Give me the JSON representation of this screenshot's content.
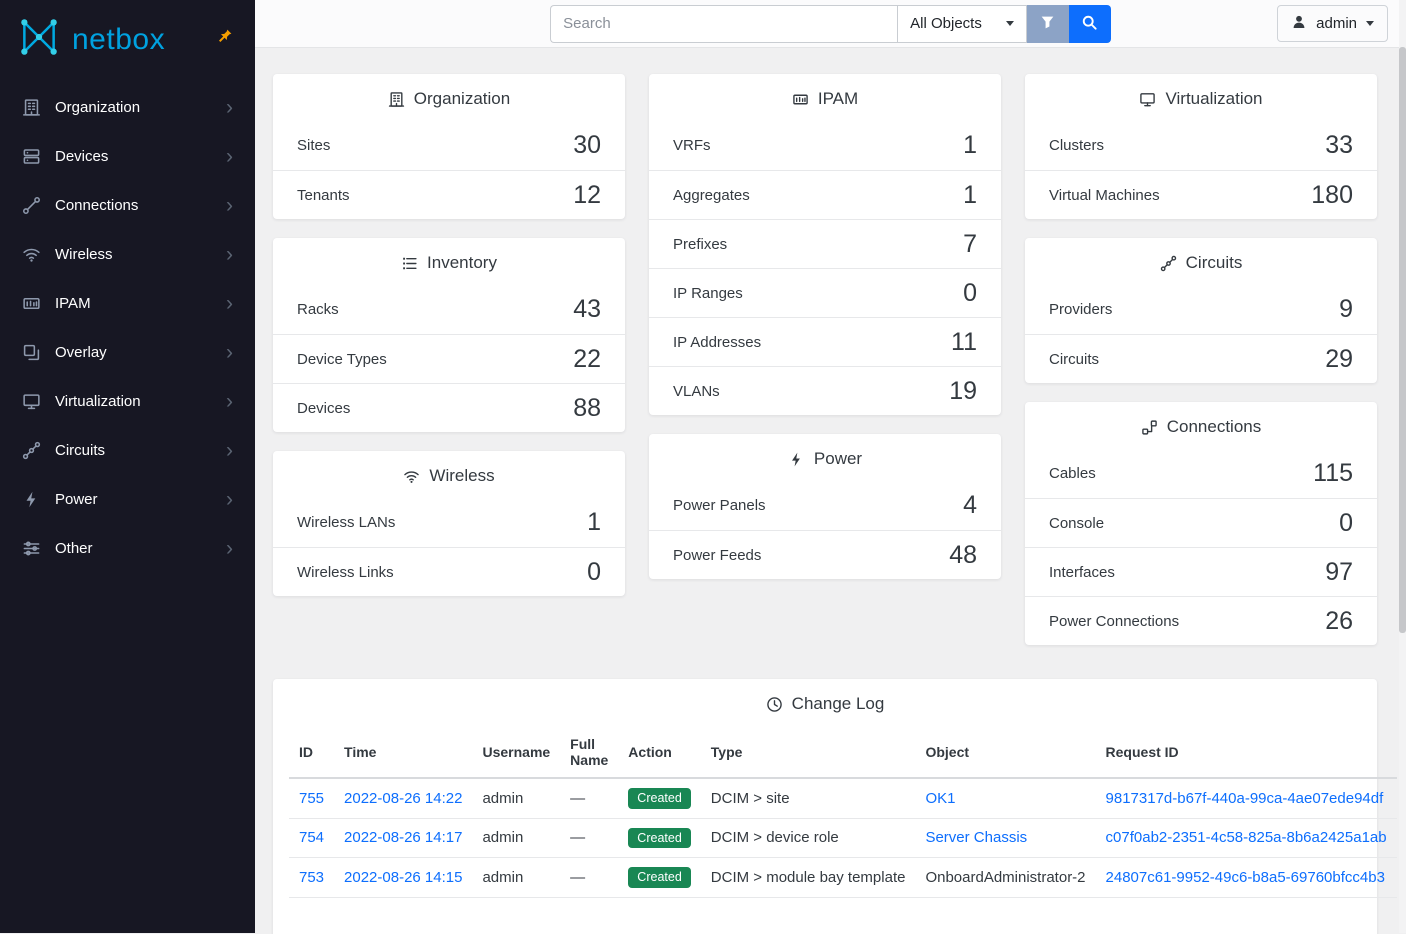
{
  "colors": {
    "brand_blue": "#00a2e0",
    "accent_blue": "#0d6efd",
    "success_green": "#198754",
    "pin_amber": "#f59f00",
    "sidebar_bg": "#171723"
  },
  "sidebar": {
    "logo_text": "netbox",
    "items": [
      {
        "label": "Organization",
        "icon": "building-icon"
      },
      {
        "label": "Devices",
        "icon": "devices-icon"
      },
      {
        "label": "Connections",
        "icon": "connections-icon"
      },
      {
        "label": "Wireless",
        "icon": "wifi-icon"
      },
      {
        "label": "IPAM",
        "icon": "ipam-icon"
      },
      {
        "label": "Overlay",
        "icon": "overlay-icon"
      },
      {
        "label": "Virtualization",
        "icon": "virtualization-icon"
      },
      {
        "label": "Circuits",
        "icon": "circuits-icon"
      },
      {
        "label": "Power",
        "icon": "power-icon"
      },
      {
        "label": "Other",
        "icon": "other-icon"
      }
    ]
  },
  "topbar": {
    "search_placeholder": "Search",
    "object_scope": "All Objects",
    "user_label": "admin"
  },
  "columns": [
    [
      {
        "title": "Organization",
        "icon": "building-icon",
        "rows": [
          {
            "label": "Sites",
            "value": "30"
          },
          {
            "label": "Tenants",
            "value": "12"
          }
        ]
      },
      {
        "title": "Inventory",
        "icon": "inventory-icon",
        "rows": [
          {
            "label": "Racks",
            "value": "43"
          },
          {
            "label": "Device Types",
            "value": "22"
          },
          {
            "label": "Devices",
            "value": "88"
          }
        ]
      },
      {
        "title": "Wireless",
        "icon": "wifi-icon",
        "rows": [
          {
            "label": "Wireless LANs",
            "value": "1"
          },
          {
            "label": "Wireless Links",
            "value": "0"
          }
        ]
      }
    ],
    [
      {
        "title": "IPAM",
        "icon": "ipam-icon",
        "rows": [
          {
            "label": "VRFs",
            "value": "1"
          },
          {
            "label": "Aggregates",
            "value": "1"
          },
          {
            "label": "Prefixes",
            "value": "7"
          },
          {
            "label": "IP Ranges",
            "value": "0"
          },
          {
            "label": "IP Addresses",
            "value": "11"
          },
          {
            "label": "VLANs",
            "value": "19"
          }
        ]
      },
      {
        "title": "Power",
        "icon": "power-icon",
        "rows": [
          {
            "label": "Power Panels",
            "value": "4"
          },
          {
            "label": "Power Feeds",
            "value": "48"
          }
        ]
      }
    ],
    [
      {
        "title": "Virtualization",
        "icon": "virtualization-icon",
        "rows": [
          {
            "label": "Clusters",
            "value": "33"
          },
          {
            "label": "Virtual Machines",
            "value": "180"
          }
        ]
      },
      {
        "title": "Circuits",
        "icon": "circuits-icon",
        "rows": [
          {
            "label": "Providers",
            "value": "9"
          },
          {
            "label": "Circuits",
            "value": "29"
          }
        ]
      },
      {
        "title": "Connections",
        "icon": "cable-icon",
        "rows": [
          {
            "label": "Cables",
            "value": "115"
          },
          {
            "label": "Console",
            "value": "0"
          },
          {
            "label": "Interfaces",
            "value": "97"
          },
          {
            "label": "Power Connections",
            "value": "26"
          }
        ]
      }
    ]
  ],
  "changelog": {
    "title": "Change Log",
    "icon": "history-icon",
    "headers": [
      "ID",
      "Time",
      "Username",
      "Full Name",
      "Action",
      "Type",
      "Object",
      "Request ID"
    ],
    "rows": [
      {
        "id": "755",
        "time": "2022-08-26 14:22",
        "username": "admin",
        "full_name": "—",
        "action": "Created",
        "type": "DCIM > site",
        "object": "OK1",
        "object_is_link": true,
        "request_id": "9817317d-b67f-440a-99ca-4ae07ede94df"
      },
      {
        "id": "754",
        "time": "2022-08-26 14:17",
        "username": "admin",
        "full_name": "—",
        "action": "Created",
        "type": "DCIM > device role",
        "object": "Server Chassis",
        "object_is_link": true,
        "request_id": "c07f0ab2-2351-4c58-825a-8b6a2425a1ab"
      },
      {
        "id": "753",
        "time": "2022-08-26 14:15",
        "username": "admin",
        "full_name": "—",
        "action": "Created",
        "type": "DCIM > module bay template",
        "object": "OnboardAdministrator-2",
        "object_is_link": false,
        "request_id": "24807c61-9952-49c6-b8a5-69760bfcc4b3"
      }
    ]
  }
}
